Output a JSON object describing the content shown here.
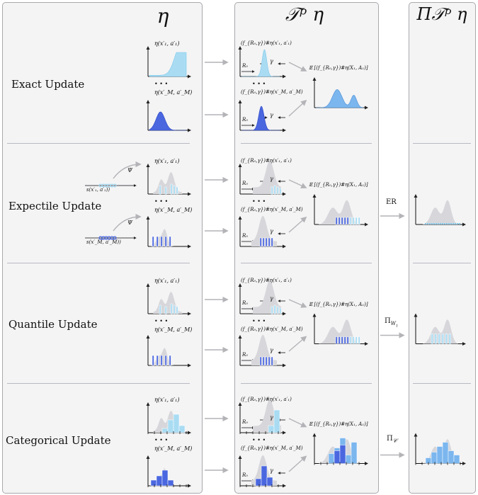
{
  "columns": {
    "eta": "η",
    "t_eta": "𝒯ᵖ η",
    "pi_t_eta": "Π𝒯ᵖ η"
  },
  "rows": [
    {
      "label": "Exact Update",
      "projection": ""
    },
    {
      "label": "Expectile Update",
      "projection": "ER"
    },
    {
      "label": "Quantile Update",
      "projection": "Π_W1"
    },
    {
      "label": "Categorical Update",
      "projection": "Π_C"
    }
  ],
  "labels": {
    "eta_top": "η(x′₁, a′₁)",
    "eta_bottom": "η(x′_M, a′_M)",
    "push_top": "(f_{R₀,γ})#η(x′₁, a′₁)",
    "push_bottom": "(f_{R₀,γ})#η(x′_M, a′_M)",
    "mixture": "𝔼 [(f_{R₀,γ})#η(X₁, A₁)]",
    "reward": "R₀",
    "gamma": "γ",
    "dots": "• • •",
    "psi": "Ψ",
    "stat_top": "s(x′₁, a′₁))",
    "stat_bottom": "s(x′_M, a′_M))"
  },
  "colors": {
    "light_blue": "#a9dcf3",
    "mid_blue": "#7bb6ee",
    "dark_blue": "#4a67e0",
    "grey_shape": "#d7d7db",
    "arrow_grey": "#b4b4b8",
    "panel": "#f4f4f5"
  }
}
